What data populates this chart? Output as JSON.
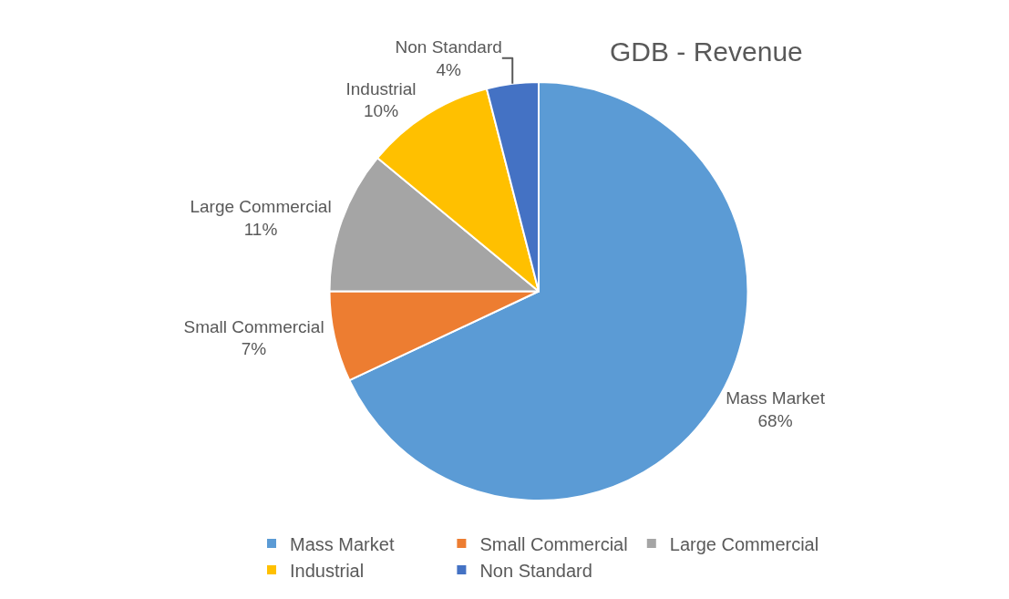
{
  "chart_data": {
    "type": "pie",
    "title": "GDB - Revenue",
    "categories": [
      "Mass Market",
      "Small Commercial",
      "Large Commercial",
      "Industrial",
      "Non Standard"
    ],
    "values": [
      68,
      7,
      11,
      10,
      4
    ],
    "value_labels": [
      "68%",
      "7%",
      "11%",
      "10%",
      "4%"
    ],
    "colors": [
      "#5b9bd5",
      "#ed7d31",
      "#a5a5a5",
      "#ffc000",
      "#4472c4"
    ],
    "legend": "bottom"
  }
}
